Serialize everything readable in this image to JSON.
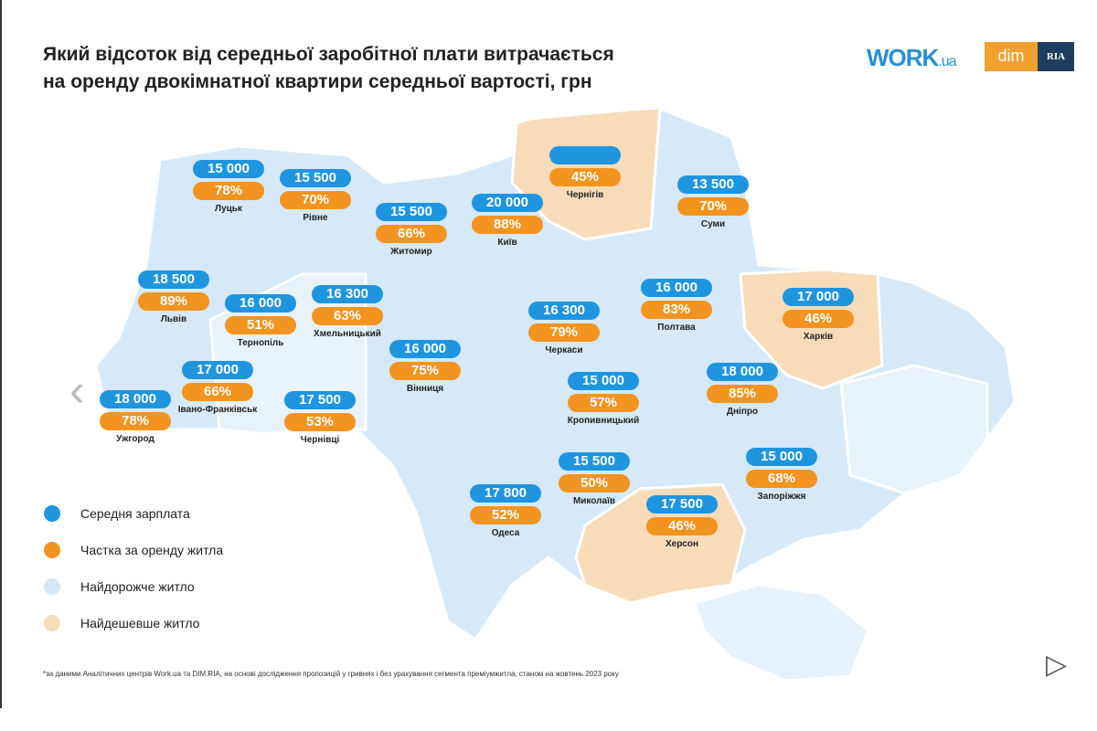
{
  "title_line1": "Який відсоток від середньої заробітної плати витрачається",
  "title_line2": "на оренду двокімнатної квартири середньої вартості, грн",
  "logos": {
    "work": "WORK",
    "work_suffix": ".ua",
    "dim": "dim",
    "ria": "RIA"
  },
  "colors": {
    "salary": "#1f95e0",
    "share": "#f2941f",
    "expensive": "#d3e7f7",
    "cheap": "#f8dcba"
  },
  "cities": [
    {
      "name": "Луцьк",
      "salary": "15 000",
      "share": "78%"
    },
    {
      "name": "Рівне",
      "salary": "15 500",
      "share": "70%"
    },
    {
      "name": "Житомир",
      "salary": "15 500",
      "share": "66%"
    },
    {
      "name": "Київ",
      "salary": "20 000",
      "share": "88%"
    },
    {
      "name": "Чернігів",
      "salary": "",
      "share": "45%"
    },
    {
      "name": "Суми",
      "salary": "13 500",
      "share": "70%"
    },
    {
      "name": "Львів",
      "salary": "18 500",
      "share": "89%"
    },
    {
      "name": "Тернопіль",
      "salary": "16 000",
      "share": "51%"
    },
    {
      "name": "Хмельницький",
      "salary": "16 300",
      "share": "63%"
    },
    {
      "name": "Вінниця",
      "salary": "16 000",
      "share": "75%"
    },
    {
      "name": "Черкаси",
      "salary": "16 300",
      "share": "79%"
    },
    {
      "name": "Полтава",
      "salary": "16 000",
      "share": "83%"
    },
    {
      "name": "Харків",
      "salary": "17 000",
      "share": "46%"
    },
    {
      "name": "Івано-Франківськ",
      "salary": "17 000",
      "share": "66%"
    },
    {
      "name": "Ужгород",
      "salary": "18 000",
      "share": "78%"
    },
    {
      "name": "Чернівці",
      "salary": "17 500",
      "share": "53%"
    },
    {
      "name": "Кропивницький",
      "salary": "15 000",
      "share": "57%"
    },
    {
      "name": "Дніпро",
      "salary": "18 000",
      "share": "85%"
    },
    {
      "name": "Запоріжжя",
      "salary": "15 000",
      "share": "68%"
    },
    {
      "name": "Миколаїв",
      "salary": "15 500",
      "share": "50%"
    },
    {
      "name": "Одеса",
      "salary": "17 800",
      "share": "52%"
    },
    {
      "name": "Херсон",
      "salary": "17 500",
      "share": "46%"
    }
  ],
  "legend": [
    {
      "label": "Середня зарплата"
    },
    {
      "label": "Частка за оренду житла"
    },
    {
      "label": "Найдорожче житло"
    },
    {
      "label": "Найдешевше житло"
    }
  ],
  "footnote": "*за даними Аналітичних центрів Work.ua та DIM.RIA, на основі дослідження пропозицій у гривнях і без урахування сегмента преміумжитла, станом на жовтень 2023 року",
  "nav": {
    "prev": "‹",
    "next": "▷"
  }
}
